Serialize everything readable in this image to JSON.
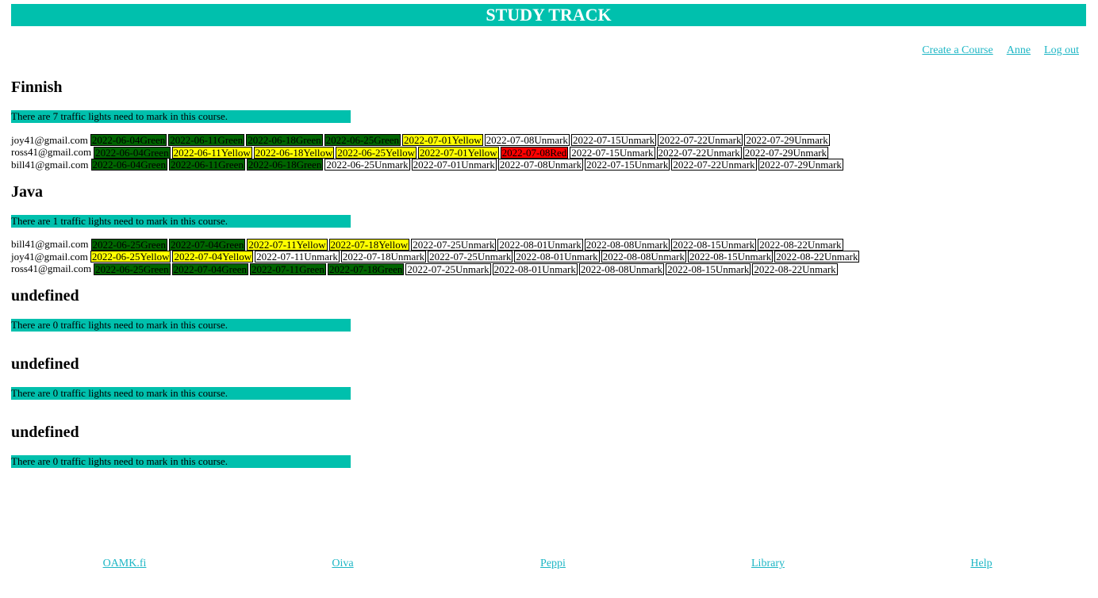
{
  "app": {
    "title": "STUDY TRACK"
  },
  "nav": {
    "create_course": "Create a Course",
    "user": "Anne",
    "logout": "Log out"
  },
  "colors": {
    "brand": "#00c0ad",
    "link": "#1db6c5",
    "green": "#006400",
    "yellow": "#ffff00",
    "red": "#ff0000",
    "unmark": "#ffffff"
  },
  "courses": [
    {
      "title": "Finnish",
      "status": "There are 7 traffic lights need to mark in this course.",
      "students": [
        {
          "email": "joy41@gmail.com",
          "lights": [
            {
              "date": "2022-06-04",
              "status": "Green"
            },
            {
              "date": "2022-06-11",
              "status": "Green"
            },
            {
              "date": "2022-06-18",
              "status": "Green"
            },
            {
              "date": "2022-06-25",
              "status": "Green"
            },
            {
              "date": "2022-07-01",
              "status": "Yellow"
            },
            {
              "date": "2022-07-08",
              "status": "Unmark"
            },
            {
              "date": "2022-07-15",
              "status": "Unmark"
            },
            {
              "date": "2022-07-22",
              "status": "Unmark"
            },
            {
              "date": "2022-07-29",
              "status": "Unmark"
            }
          ]
        },
        {
          "email": "ross41@gmail.com",
          "lights": [
            {
              "date": "2022-06-04",
              "status": "Green"
            },
            {
              "date": "2022-06-11",
              "status": "Yellow"
            },
            {
              "date": "2022-06-18",
              "status": "Yellow"
            },
            {
              "date": "2022-06-25",
              "status": "Yellow"
            },
            {
              "date": "2022-07-01",
              "status": "Yellow"
            },
            {
              "date": "2022-07-08",
              "status": "Red"
            },
            {
              "date": "2022-07-15",
              "status": "Unmark"
            },
            {
              "date": "2022-07-22",
              "status": "Unmark"
            },
            {
              "date": "2022-07-29",
              "status": "Unmark"
            }
          ]
        },
        {
          "email": "bill41@gmail.com",
          "lights": [
            {
              "date": "2022-06-04",
              "status": "Green"
            },
            {
              "date": "2022-06-11",
              "status": "Green"
            },
            {
              "date": "2022-06-18",
              "status": "Green"
            },
            {
              "date": "2022-06-25",
              "status": "Unmark"
            },
            {
              "date": "2022-07-01",
              "status": "Unmark"
            },
            {
              "date": "2022-07-08",
              "status": "Unmark"
            },
            {
              "date": "2022-07-15",
              "status": "Unmark"
            },
            {
              "date": "2022-07-22",
              "status": "Unmark"
            },
            {
              "date": "2022-07-29",
              "status": "Unmark"
            }
          ]
        }
      ]
    },
    {
      "title": "Java",
      "status": "There are 1 traffic lights need to mark in this course.",
      "students": [
        {
          "email": "bill41@gmail.com",
          "lights": [
            {
              "date": "2022-06-25",
              "status": "Green"
            },
            {
              "date": "2022-07-04",
              "status": "Green"
            },
            {
              "date": "2022-07-11",
              "status": "Yellow"
            },
            {
              "date": "2022-07-18",
              "status": "Yellow"
            },
            {
              "date": "2022-07-25",
              "status": "Unmark"
            },
            {
              "date": "2022-08-01",
              "status": "Unmark"
            },
            {
              "date": "2022-08-08",
              "status": "Unmark"
            },
            {
              "date": "2022-08-15",
              "status": "Unmark"
            },
            {
              "date": "2022-08-22",
              "status": "Unmark"
            }
          ]
        },
        {
          "email": "joy41@gmail.com",
          "lights": [
            {
              "date": "2022-06-25",
              "status": "Yellow"
            },
            {
              "date": "2022-07-04",
              "status": "Yellow"
            },
            {
              "date": "2022-07-11",
              "status": "Unmark"
            },
            {
              "date": "2022-07-18",
              "status": "Unmark"
            },
            {
              "date": "2022-07-25",
              "status": "Unmark"
            },
            {
              "date": "2022-08-01",
              "status": "Unmark"
            },
            {
              "date": "2022-08-08",
              "status": "Unmark"
            },
            {
              "date": "2022-08-15",
              "status": "Unmark"
            },
            {
              "date": "2022-08-22",
              "status": "Unmark"
            }
          ]
        },
        {
          "email": "ross41@gmail.com",
          "lights": [
            {
              "date": "2022-06-25",
              "status": "Green"
            },
            {
              "date": "2022-07-04",
              "status": "Green"
            },
            {
              "date": "2022-07-11",
              "status": "Green"
            },
            {
              "date": "2022-07-18",
              "status": "Green"
            },
            {
              "date": "2022-07-25",
              "status": "Unmark"
            },
            {
              "date": "2022-08-01",
              "status": "Unmark"
            },
            {
              "date": "2022-08-08",
              "status": "Unmark"
            },
            {
              "date": "2022-08-15",
              "status": "Unmark"
            },
            {
              "date": "2022-08-22",
              "status": "Unmark"
            }
          ]
        }
      ]
    },
    {
      "title": "undefined",
      "status": "There are 0 traffic lights need to mark in this course.",
      "students": []
    },
    {
      "title": "undefined",
      "status": "There are 0 traffic lights need to mark in this course.",
      "students": []
    },
    {
      "title": "undefined",
      "status": "There are 0 traffic lights need to mark in this course.",
      "students": []
    }
  ],
  "footer": {
    "links": [
      "OAMK.fi",
      "Oiva",
      "Peppi",
      "Library",
      "Help"
    ]
  }
}
